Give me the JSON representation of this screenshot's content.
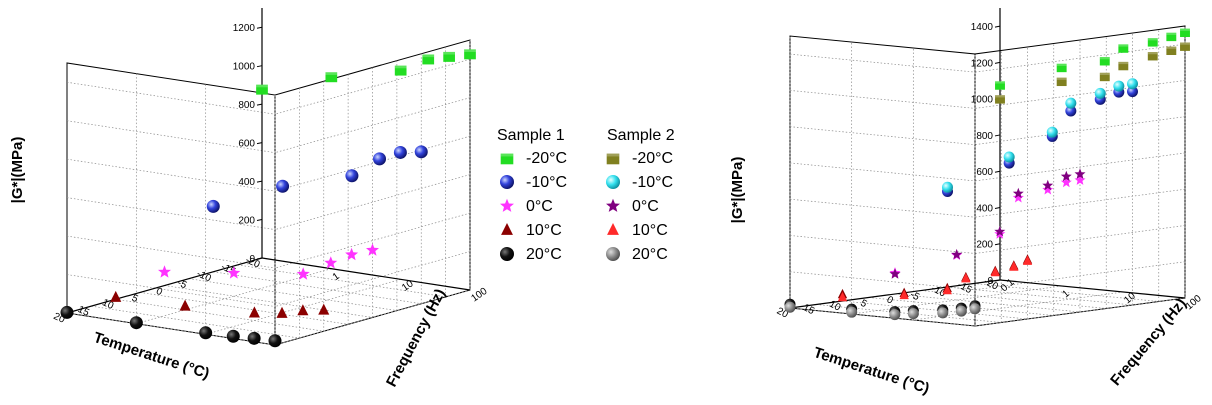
{
  "legend": {
    "sample1_title": "Sample 1",
    "sample2_title": "Sample 2",
    "entries": [
      "-20°C",
      "-10°C",
      "0°C",
      "10°C",
      "20°C"
    ],
    "sample1_colors": [
      "#22dd22",
      "#2233cc",
      "#ff33ff",
      "#8b0000",
      "#000000"
    ],
    "sample2_colors": [
      "#808020",
      "#33e0ee",
      "#800080",
      "#ff2a2a",
      "#888888"
    ]
  },
  "chart_data": [
    {
      "type": "scatter3d",
      "x_label": "Temperature (°C)",
      "y_label": "Frequency (Hz)",
      "z_label": "|G*|(MPa)",
      "x_ticks": [
        "-20",
        "-15",
        "-10",
        "-5",
        "0",
        "5",
        "10",
        "15",
        "20"
      ],
      "y_ticks": [
        "1",
        "10",
        "100"
      ],
      "z_ticks": [
        "0",
        "200",
        "400",
        "600",
        "800",
        "1000",
        "1200"
      ],
      "xlim": [
        -20,
        20
      ],
      "ylim": [
        0,
        100
      ],
      "zlim": [
        0,
        1300
      ],
      "y_scale": "linear",
      "series": [
        {
          "name": "-20°C",
          "sample": "Sample 1",
          "temperature": -20,
          "frequency": [
            0.1,
            1,
            10,
            25,
            50,
            100
          ],
          "values": [
            880,
            1000,
            1090,
            1170,
            1200,
            1230
          ]
        },
        {
          "name": "-10°C",
          "sample": "Sample 1",
          "temperature": -10,
          "frequency": [
            0.1,
            1,
            10,
            25,
            50,
            100
          ],
          "values": [
            340,
            500,
            610,
            720,
            770,
            790
          ]
        },
        {
          "name": "0°C",
          "sample": "Sample 1",
          "temperature": 0,
          "frequency": [
            0.1,
            1,
            10,
            25,
            50,
            100
          ],
          "values": [
            70,
            120,
            170,
            250,
            310,
            350
          ]
        },
        {
          "name": "10°C",
          "sample": "Sample 1",
          "temperature": 10,
          "frequency": [
            0.1,
            1,
            10,
            25,
            50,
            100
          ],
          "values": [
            10,
            20,
            40,
            60,
            90,
            110
          ]
        },
        {
          "name": "20°C",
          "sample": "Sample 1",
          "temperature": 20,
          "frequency": [
            0.1,
            1,
            10,
            25,
            50,
            100
          ],
          "values": [
            3,
            5,
            8,
            12,
            18,
            22
          ]
        }
      ]
    },
    {
      "type": "scatter3d",
      "x_label": "Temperature (°C)",
      "y_label": "Frequency (Hz)",
      "z_label": "|G*|(MPa)",
      "x_ticks": [
        "-20",
        "-15",
        "-10",
        "-5",
        "0",
        "5",
        "10",
        "15",
        "20"
      ],
      "y_ticks": [
        "0.1",
        "1",
        "10",
        "100"
      ],
      "z_ticks": [
        "0",
        "200",
        "400",
        "600",
        "800",
        "1000",
        "1200",
        "1400"
      ],
      "xlim": [
        -20,
        20
      ],
      "ylim": [
        0.1,
        100
      ],
      "zlim": [
        0,
        1500
      ],
      "y_scale": "log",
      "series": [
        {
          "name": "-20°C",
          "sample": "Sample 1",
          "temperature": -20,
          "frequency": [
            0.1,
            1,
            5,
            10,
            30,
            60,
            100
          ],
          "values": [
            1060,
            1190,
            1250,
            1330,
            1380,
            1420,
            1450
          ]
        },
        {
          "name": "-20°C",
          "sample": "Sample 2",
          "temperature": -20,
          "frequency": [
            0.1,
            1,
            5,
            10,
            30,
            60,
            100
          ],
          "values": [
            1000,
            1130,
            1180,
            1250,
            1320,
            1360,
            1390
          ]
        },
        {
          "name": "-10°C",
          "sample": "Sample 1",
          "temperature": -10,
          "frequency": [
            0.1,
            1,
            5,
            10,
            30,
            60,
            100
          ],
          "values": [
            510,
            700,
            870,
            1020,
            1100,
            1150,
            1160
          ]
        },
        {
          "name": "-10°C",
          "sample": "Sample 2",
          "temperature": -10,
          "frequency": [
            0.1,
            1,
            5,
            10,
            30,
            60,
            100
          ],
          "values": [
            550,
            750,
            910,
            1080,
            1150,
            1200,
            1220
          ]
        },
        {
          "name": "0°C",
          "sample": "Sample 1",
          "temperature": 0,
          "frequency": [
            0.1,
            1,
            5,
            10,
            30,
            60,
            100
          ],
          "values": [
            100,
            230,
            370,
            580,
            640,
            690,
            710
          ]
        },
        {
          "name": "0°C",
          "sample": "Sample 2",
          "temperature": 0,
          "frequency": [
            0.1,
            1,
            5,
            10,
            30,
            60,
            100
          ],
          "values": [
            110,
            250,
            400,
            620,
            680,
            740,
            760
          ]
        },
        {
          "name": "10°C",
          "sample": "Sample 1",
          "temperature": 10,
          "frequency": [
            0.1,
            1,
            5,
            10,
            30,
            60,
            100
          ],
          "values": [
            20,
            60,
            110,
            180,
            230,
            270,
            310
          ]
        },
        {
          "name": "10°C",
          "sample": "Sample 2",
          "temperature": 10,
          "frequency": [
            0.1,
            1,
            5,
            10,
            30,
            60,
            100
          ],
          "values": [
            20,
            65,
            115,
            190,
            240,
            280,
            320
          ]
        },
        {
          "name": "20°C",
          "sample": "Sample 1",
          "temperature": 20,
          "frequency": [
            0.1,
            1,
            5,
            10,
            30,
            60,
            100
          ],
          "values": [
            4,
            10,
            20,
            35,
            55,
            75,
            95
          ]
        },
        {
          "name": "20°C",
          "sample": "Sample 2",
          "temperature": 20,
          "frequency": [
            0.1,
            1,
            5,
            10,
            30,
            60,
            100
          ],
          "values": [
            4,
            10,
            20,
            35,
            55,
            75,
            95
          ]
        }
      ]
    }
  ]
}
